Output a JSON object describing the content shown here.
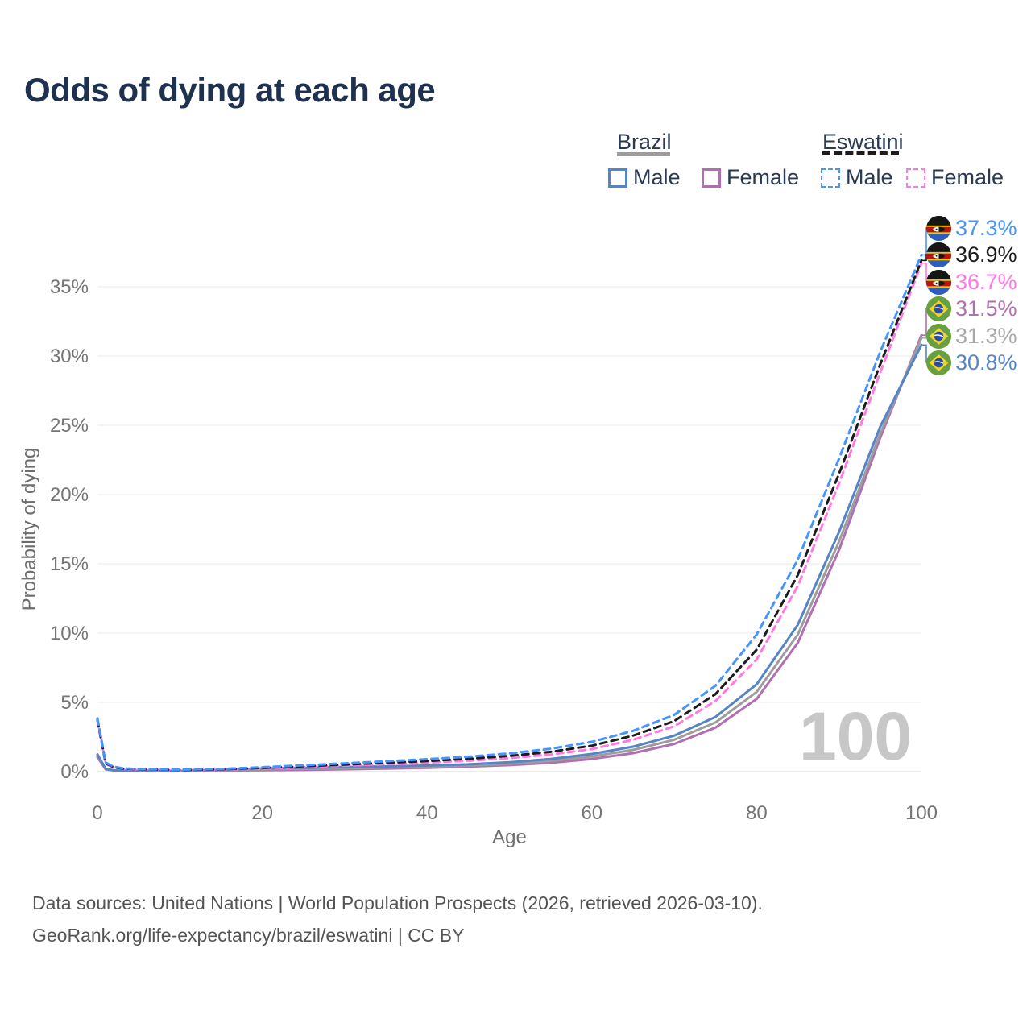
{
  "title": "Odds of dying at each age",
  "legend": {
    "groups": [
      {
        "label": "Brazil",
        "line_style": "solid",
        "underline_color": "#9d9d9d",
        "items": [
          {
            "label": "Male",
            "color": "#5684c4"
          },
          {
            "label": "Female",
            "color": "#b06fb0"
          }
        ]
      },
      {
        "label": "Eswatini",
        "line_style": "dashed",
        "underline_color": "#1c1c1c",
        "items": [
          {
            "label": "Male",
            "color": "#4694ff"
          },
          {
            "label": "Female",
            "color": "#ff79e1"
          }
        ]
      }
    ]
  },
  "watermark": "100",
  "end_labels": [
    {
      "value": "37.3%",
      "flag": "eswatini",
      "color": "#4694ff",
      "series_id": "eswatini_male"
    },
    {
      "value": "36.9%",
      "flag": "eswatini",
      "color": "#1c1c1c",
      "series_id": "eswatini_total"
    },
    {
      "value": "36.7%",
      "flag": "eswatini",
      "color": "#ff79e1",
      "series_id": "eswatini_female"
    },
    {
      "value": "31.5%",
      "flag": "brazil",
      "color": "#b06fb0",
      "series_id": "brazil_female"
    },
    {
      "value": "31.3%",
      "flag": "brazil",
      "color": "#a8a8a8",
      "series_id": "brazil_total"
    },
    {
      "value": "30.8%",
      "flag": "brazil",
      "color": "#5684c4",
      "series_id": "brazil_male"
    }
  ],
  "footer": {
    "line1": "Data sources: United Nations | World Population Prospects (2026, retrieved 2026-03-10).",
    "line2": "GeoRank.org/life-expectancy/brazil/eswatini | CC BY"
  },
  "chart_data": {
    "type": "line",
    "title": "Odds of dying at each age",
    "xlabel": "Age",
    "ylabel": "Probability of dying",
    "xlim": [
      0,
      100
    ],
    "ylim": [
      0,
      37.5
    ],
    "xticks": [
      0,
      20,
      40,
      60,
      80,
      100
    ],
    "yticks": [
      0,
      5,
      10,
      15,
      20,
      25,
      30,
      35
    ],
    "ytick_suffix": "%",
    "grid": "horizontal",
    "legend_position": "top-right",
    "series": [
      {
        "id": "brazil_female",
        "name": "Brazil Female",
        "country": "Brazil",
        "sex": "Female",
        "color": "#b06fb0",
        "dashed": false,
        "end_value_pct": 31.5,
        "points": [
          [
            0,
            1.05
          ],
          [
            1,
            0.16
          ],
          [
            2,
            0.08
          ],
          [
            3,
            0.06
          ],
          [
            5,
            0.04
          ],
          [
            10,
            0.04
          ],
          [
            15,
            0.07
          ],
          [
            20,
            0.1
          ],
          [
            25,
            0.13
          ],
          [
            30,
            0.17
          ],
          [
            35,
            0.22
          ],
          [
            40,
            0.28
          ],
          [
            45,
            0.36
          ],
          [
            50,
            0.47
          ],
          [
            55,
            0.64
          ],
          [
            60,
            0.92
          ],
          [
            65,
            1.34
          ],
          [
            70,
            2.0
          ],
          [
            75,
            3.18
          ],
          [
            80,
            5.25
          ],
          [
            85,
            9.3
          ],
          [
            90,
            16.0
          ],
          [
            95,
            24.1
          ],
          [
            100,
            31.5
          ]
        ]
      },
      {
        "id": "brazil_total",
        "name": "Brazil Both sexes",
        "country": "Brazil",
        "sex": "Both",
        "color": "#9d9d9d",
        "dashed": false,
        "end_value_pct": 31.3,
        "points": [
          [
            0,
            1.15
          ],
          [
            1,
            0.18
          ],
          [
            2,
            0.09
          ],
          [
            3,
            0.06
          ],
          [
            5,
            0.05
          ],
          [
            10,
            0.04
          ],
          [
            15,
            0.1
          ],
          [
            20,
            0.17
          ],
          [
            25,
            0.21
          ],
          [
            30,
            0.25
          ],
          [
            35,
            0.3
          ],
          [
            40,
            0.36
          ],
          [
            45,
            0.44
          ],
          [
            50,
            0.57
          ],
          [
            55,
            0.78
          ],
          [
            60,
            1.1
          ],
          [
            65,
            1.57
          ],
          [
            70,
            2.3
          ],
          [
            75,
            3.55
          ],
          [
            80,
            5.75
          ],
          [
            85,
            9.9
          ],
          [
            90,
            16.6
          ],
          [
            95,
            24.4
          ],
          [
            100,
            31.3
          ]
        ]
      },
      {
        "id": "brazil_male",
        "name": "Brazil Male",
        "country": "Brazil",
        "sex": "Male",
        "color": "#5684c4",
        "dashed": false,
        "end_value_pct": 30.8,
        "points": [
          [
            0,
            1.25
          ],
          [
            1,
            0.2
          ],
          [
            2,
            0.1
          ],
          [
            3,
            0.07
          ],
          [
            5,
            0.05
          ],
          [
            10,
            0.05
          ],
          [
            15,
            0.13
          ],
          [
            20,
            0.23
          ],
          [
            25,
            0.28
          ],
          [
            30,
            0.33
          ],
          [
            35,
            0.38
          ],
          [
            40,
            0.44
          ],
          [
            45,
            0.53
          ],
          [
            50,
            0.68
          ],
          [
            55,
            0.92
          ],
          [
            60,
            1.28
          ],
          [
            65,
            1.8
          ],
          [
            70,
            2.6
          ],
          [
            75,
            3.95
          ],
          [
            80,
            6.3
          ],
          [
            85,
            10.6
          ],
          [
            90,
            17.3
          ],
          [
            95,
            24.9
          ],
          [
            100,
            30.8
          ]
        ]
      },
      {
        "id": "eswatini_female",
        "name": "Eswatini Female",
        "country": "Eswatini",
        "sex": "Female",
        "color": "#ff79e1",
        "dashed": true,
        "end_value_pct": 36.7,
        "points": [
          [
            0,
            3.65
          ],
          [
            1,
            0.55
          ],
          [
            2,
            0.3
          ],
          [
            3,
            0.2
          ],
          [
            5,
            0.14
          ],
          [
            10,
            0.11
          ],
          [
            15,
            0.14
          ],
          [
            20,
            0.22
          ],
          [
            25,
            0.32
          ],
          [
            30,
            0.43
          ],
          [
            35,
            0.54
          ],
          [
            40,
            0.65
          ],
          [
            45,
            0.79
          ],
          [
            50,
            0.98
          ],
          [
            55,
            1.24
          ],
          [
            60,
            1.63
          ],
          [
            65,
            2.3
          ],
          [
            70,
            3.28
          ],
          [
            75,
            5.1
          ],
          [
            80,
            8.1
          ],
          [
            85,
            13.4
          ],
          [
            90,
            20.8
          ],
          [
            95,
            28.8
          ],
          [
            100,
            36.7
          ]
        ]
      },
      {
        "id": "eswatini_total",
        "name": "Eswatini Both sexes",
        "country": "Eswatini",
        "sex": "Both",
        "color": "#1c1c1c",
        "dashed": true,
        "end_value_pct": 36.9,
        "points": [
          [
            0,
            3.75
          ],
          [
            1,
            0.6
          ],
          [
            2,
            0.32
          ],
          [
            3,
            0.22
          ],
          [
            5,
            0.16
          ],
          [
            10,
            0.12
          ],
          [
            15,
            0.17
          ],
          [
            20,
            0.27
          ],
          [
            25,
            0.39
          ],
          [
            30,
            0.51
          ],
          [
            35,
            0.64
          ],
          [
            40,
            0.77
          ],
          [
            45,
            0.93
          ],
          [
            50,
            1.14
          ],
          [
            55,
            1.43
          ],
          [
            60,
            1.87
          ],
          [
            65,
            2.6
          ],
          [
            70,
            3.65
          ],
          [
            75,
            5.6
          ],
          [
            80,
            8.8
          ],
          [
            85,
            14.2
          ],
          [
            90,
            21.5
          ],
          [
            95,
            29.4
          ],
          [
            100,
            36.9
          ]
        ]
      },
      {
        "id": "eswatini_male",
        "name": "Eswatini Male",
        "country": "Eswatini",
        "sex": "Male",
        "color": "#4694ff",
        "dashed": true,
        "end_value_pct": 37.3,
        "points": [
          [
            0,
            3.85
          ],
          [
            1,
            0.65
          ],
          [
            2,
            0.35
          ],
          [
            3,
            0.25
          ],
          [
            5,
            0.18
          ],
          [
            10,
            0.14
          ],
          [
            15,
            0.2
          ],
          [
            20,
            0.32
          ],
          [
            25,
            0.46
          ],
          [
            30,
            0.6
          ],
          [
            35,
            0.75
          ],
          [
            40,
            0.9
          ],
          [
            45,
            1.08
          ],
          [
            50,
            1.32
          ],
          [
            55,
            1.65
          ],
          [
            60,
            2.15
          ],
          [
            65,
            2.95
          ],
          [
            70,
            4.1
          ],
          [
            75,
            6.2
          ],
          [
            80,
            9.9
          ],
          [
            85,
            15.3
          ],
          [
            90,
            22.6
          ],
          [
            95,
            30.3
          ],
          [
            100,
            37.3
          ]
        ]
      }
    ]
  }
}
